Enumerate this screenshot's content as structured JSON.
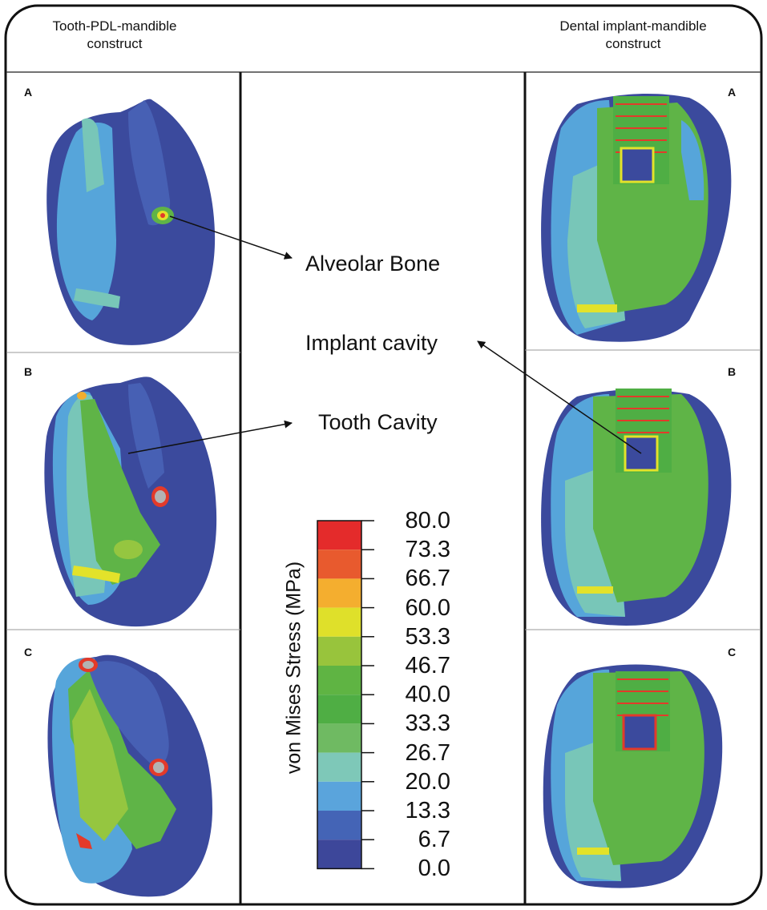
{
  "headers": {
    "left_line1": "Tooth-PDL-mandible",
    "left_line2": "construct",
    "right_line1": "Dental implant-mandible",
    "right_line2": "construct"
  },
  "panel_labels": {
    "left_a": "A",
    "left_b": "B",
    "left_c": "C",
    "right_a": "A",
    "right_b": "B",
    "right_c": "C"
  },
  "annotations": {
    "alveolar_bone": "Alveolar Bone",
    "implant_cavity": "Implant cavity",
    "tooth_cavity": "Tooth Cavity"
  },
  "legend": {
    "axis_label": "von Mises Stress (MPa)",
    "ticks": [
      "80.0",
      "73.3",
      "66.7",
      "60.0",
      "53.3",
      "46.7",
      "40.0",
      "33.3",
      "26.7",
      "20.0",
      "13.3",
      "6.7",
      "0.0"
    ],
    "colors": [
      "#e42b2b",
      "#e85a2e",
      "#f4ae2f",
      "#dfe02a",
      "#98c43c",
      "#5fb443",
      "#4fae44",
      "#6fba62",
      "#7ec8b8",
      "#5aa4dc",
      "#4464b6",
      "#3d479a"
    ]
  },
  "stress_colors": {
    "dark_blue": "#3b4a9d",
    "blue": "#4760b4",
    "light_blue": "#56a5da",
    "teal": "#78c6b8",
    "green": "#5fb447",
    "light_green": "#95c640",
    "yellow": "#e3e22a",
    "orange": "#f2ad2d",
    "red": "#e33a2a",
    "grey": "#b3b3b3"
  }
}
